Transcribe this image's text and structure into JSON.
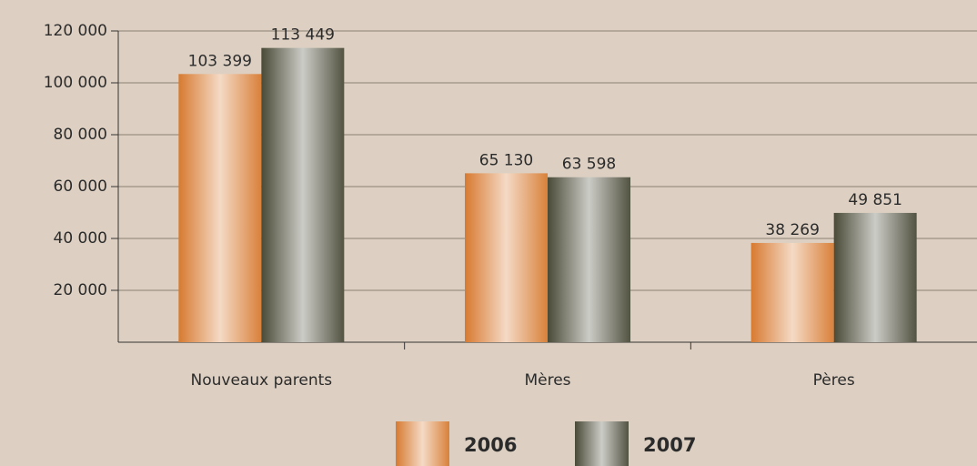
{
  "chart_data": {
    "type": "bar",
    "categories": [
      "Nouveaux parents",
      "Mères",
      "Pères"
    ],
    "series": [
      {
        "name": "2006",
        "color": "#d77a30",
        "values": [
          103399,
          65130,
          38269
        ],
        "value_labels": [
          "103 399",
          "65 130",
          "38 269"
        ]
      },
      {
        "name": "2007",
        "color": "#4a4a38",
        "values": [
          113449,
          63598,
          49851
        ],
        "value_labels": [
          "113 449",
          "63 598",
          "49 851"
        ]
      }
    ],
    "ylim": [
      0,
      120000
    ],
    "yticks": [
      {
        "value": 20000,
        "label": "20 000"
      },
      {
        "value": 40000,
        "label": "40 000"
      },
      {
        "value": 60000,
        "label": "60 000"
      },
      {
        "value": 80000,
        "label": "80 000"
      },
      {
        "value": 100000,
        "label": "100 000"
      },
      {
        "value": 120000,
        "label": "120 000"
      }
    ],
    "grid": true,
    "legend": "bottom"
  }
}
